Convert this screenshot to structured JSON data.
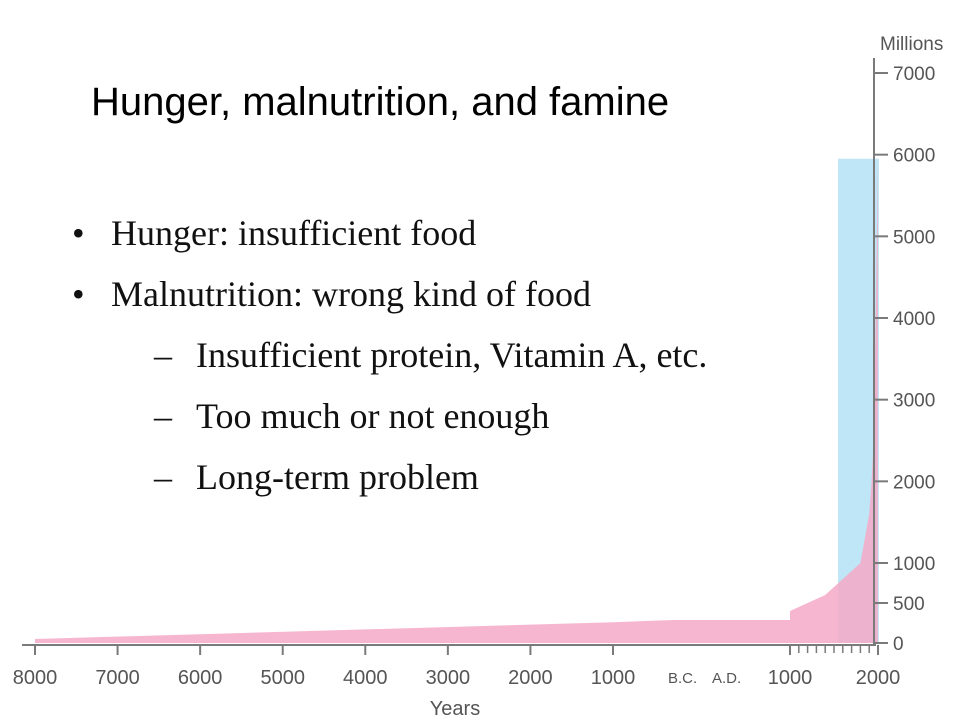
{
  "slide": {
    "title": "Hunger, malnutrition, and famine",
    "bullets": [
      {
        "level": 1,
        "text": "Hunger: insufficient food"
      },
      {
        "level": 1,
        "text": "Malnutrition: wrong kind of food"
      },
      {
        "level": 2,
        "marker": "–",
        "text": "Insufficient protein, Vitamin A, etc."
      },
      {
        "level": 2,
        "marker": "–",
        "text": "Too much or not enough"
      },
      {
        "level": 2,
        "marker": "–",
        "text": "Long-term problem"
      }
    ]
  },
  "chart_data": {
    "type": "area",
    "ylabel": "Millions",
    "xlabel": "Years",
    "era_labels": [
      "B.C.",
      "A.D."
    ],
    "x_ticks": [
      -8000,
      -7000,
      -6000,
      -5000,
      -4000,
      -3000,
      -2000,
      -1000,
      1000,
      2000
    ],
    "x_tick_labels": [
      "8000",
      "7000",
      "6000",
      "5000",
      "4000",
      "3000",
      "2000",
      "1000",
      "1000",
      "2000"
    ],
    "y_ticks": [
      0,
      500,
      1000,
      2000,
      3000,
      4000,
      5000,
      6000,
      7000
    ],
    "y_tick_labels": [
      "0",
      "500",
      "1000",
      "2000",
      "3000",
      "4000",
      "5000",
      "6000",
      "7000"
    ],
    "ylim": [
      0,
      7000
    ],
    "xlim": [
      -8000,
      2000
    ],
    "series": [
      {
        "color": "#f4a9c7",
        "x": [
          -8000,
          -6000,
          -4000,
          -2000,
          -1000,
          0,
          500,
          1000,
          1200,
          1400,
          1500,
          1600,
          1700,
          1750,
          1800,
          1850,
          1900,
          1927,
          1950,
          1960,
          1974,
          1987,
          1999
        ],
        "values": [
          50,
          110,
          170,
          230,
          260,
          300,
          320,
          400,
          500,
          600,
          700,
          800,
          900,
          950,
          1000,
          1300,
          1600,
          2000,
          2500,
          3000,
          4000,
          5000,
          6000
        ]
      }
    ],
    "highlight": {
      "x_start": 1500,
      "x_end": 1999,
      "y_top": 5950,
      "color": "#bfe6f6"
    },
    "grid": false,
    "legend": "none"
  }
}
